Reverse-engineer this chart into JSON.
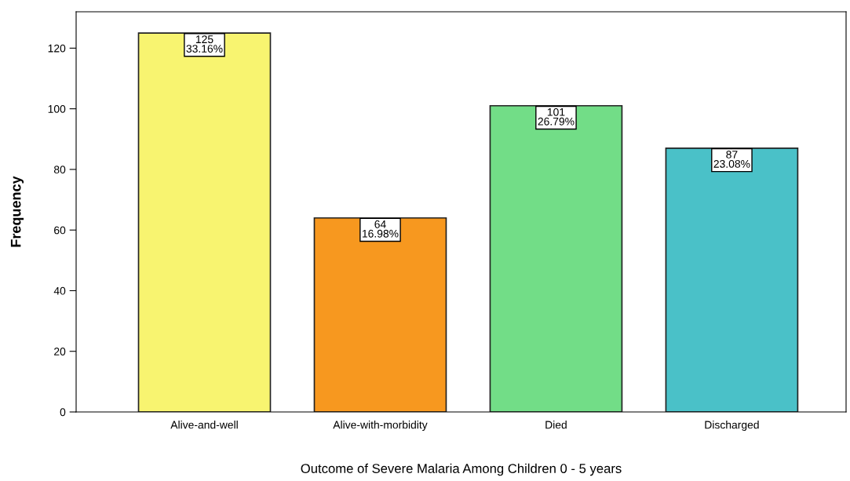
{
  "chart_data": {
    "type": "bar",
    "categories": [
      "Alive-and-well",
      "Alive-with-morbidity",
      "Died",
      "Discharged"
    ],
    "values": [
      125,
      64,
      101,
      87
    ],
    "colors": [
      "#f8f470",
      "#f7981f",
      "#72dd87",
      "#4ac1c8"
    ],
    "value_labels": [
      "125\n33.16%",
      "64\n16.98%",
      "101\n26.79%",
      "87\n23.08%"
    ],
    "xlabel": "Outcome of Severe Malaria Among Children 0 - 5 years",
    "ylabel": "Frequency",
    "ylim": [
      0,
      132
    ],
    "yticks": [
      0,
      20,
      40,
      60,
      80,
      100,
      120
    ],
    "grid": false
  }
}
